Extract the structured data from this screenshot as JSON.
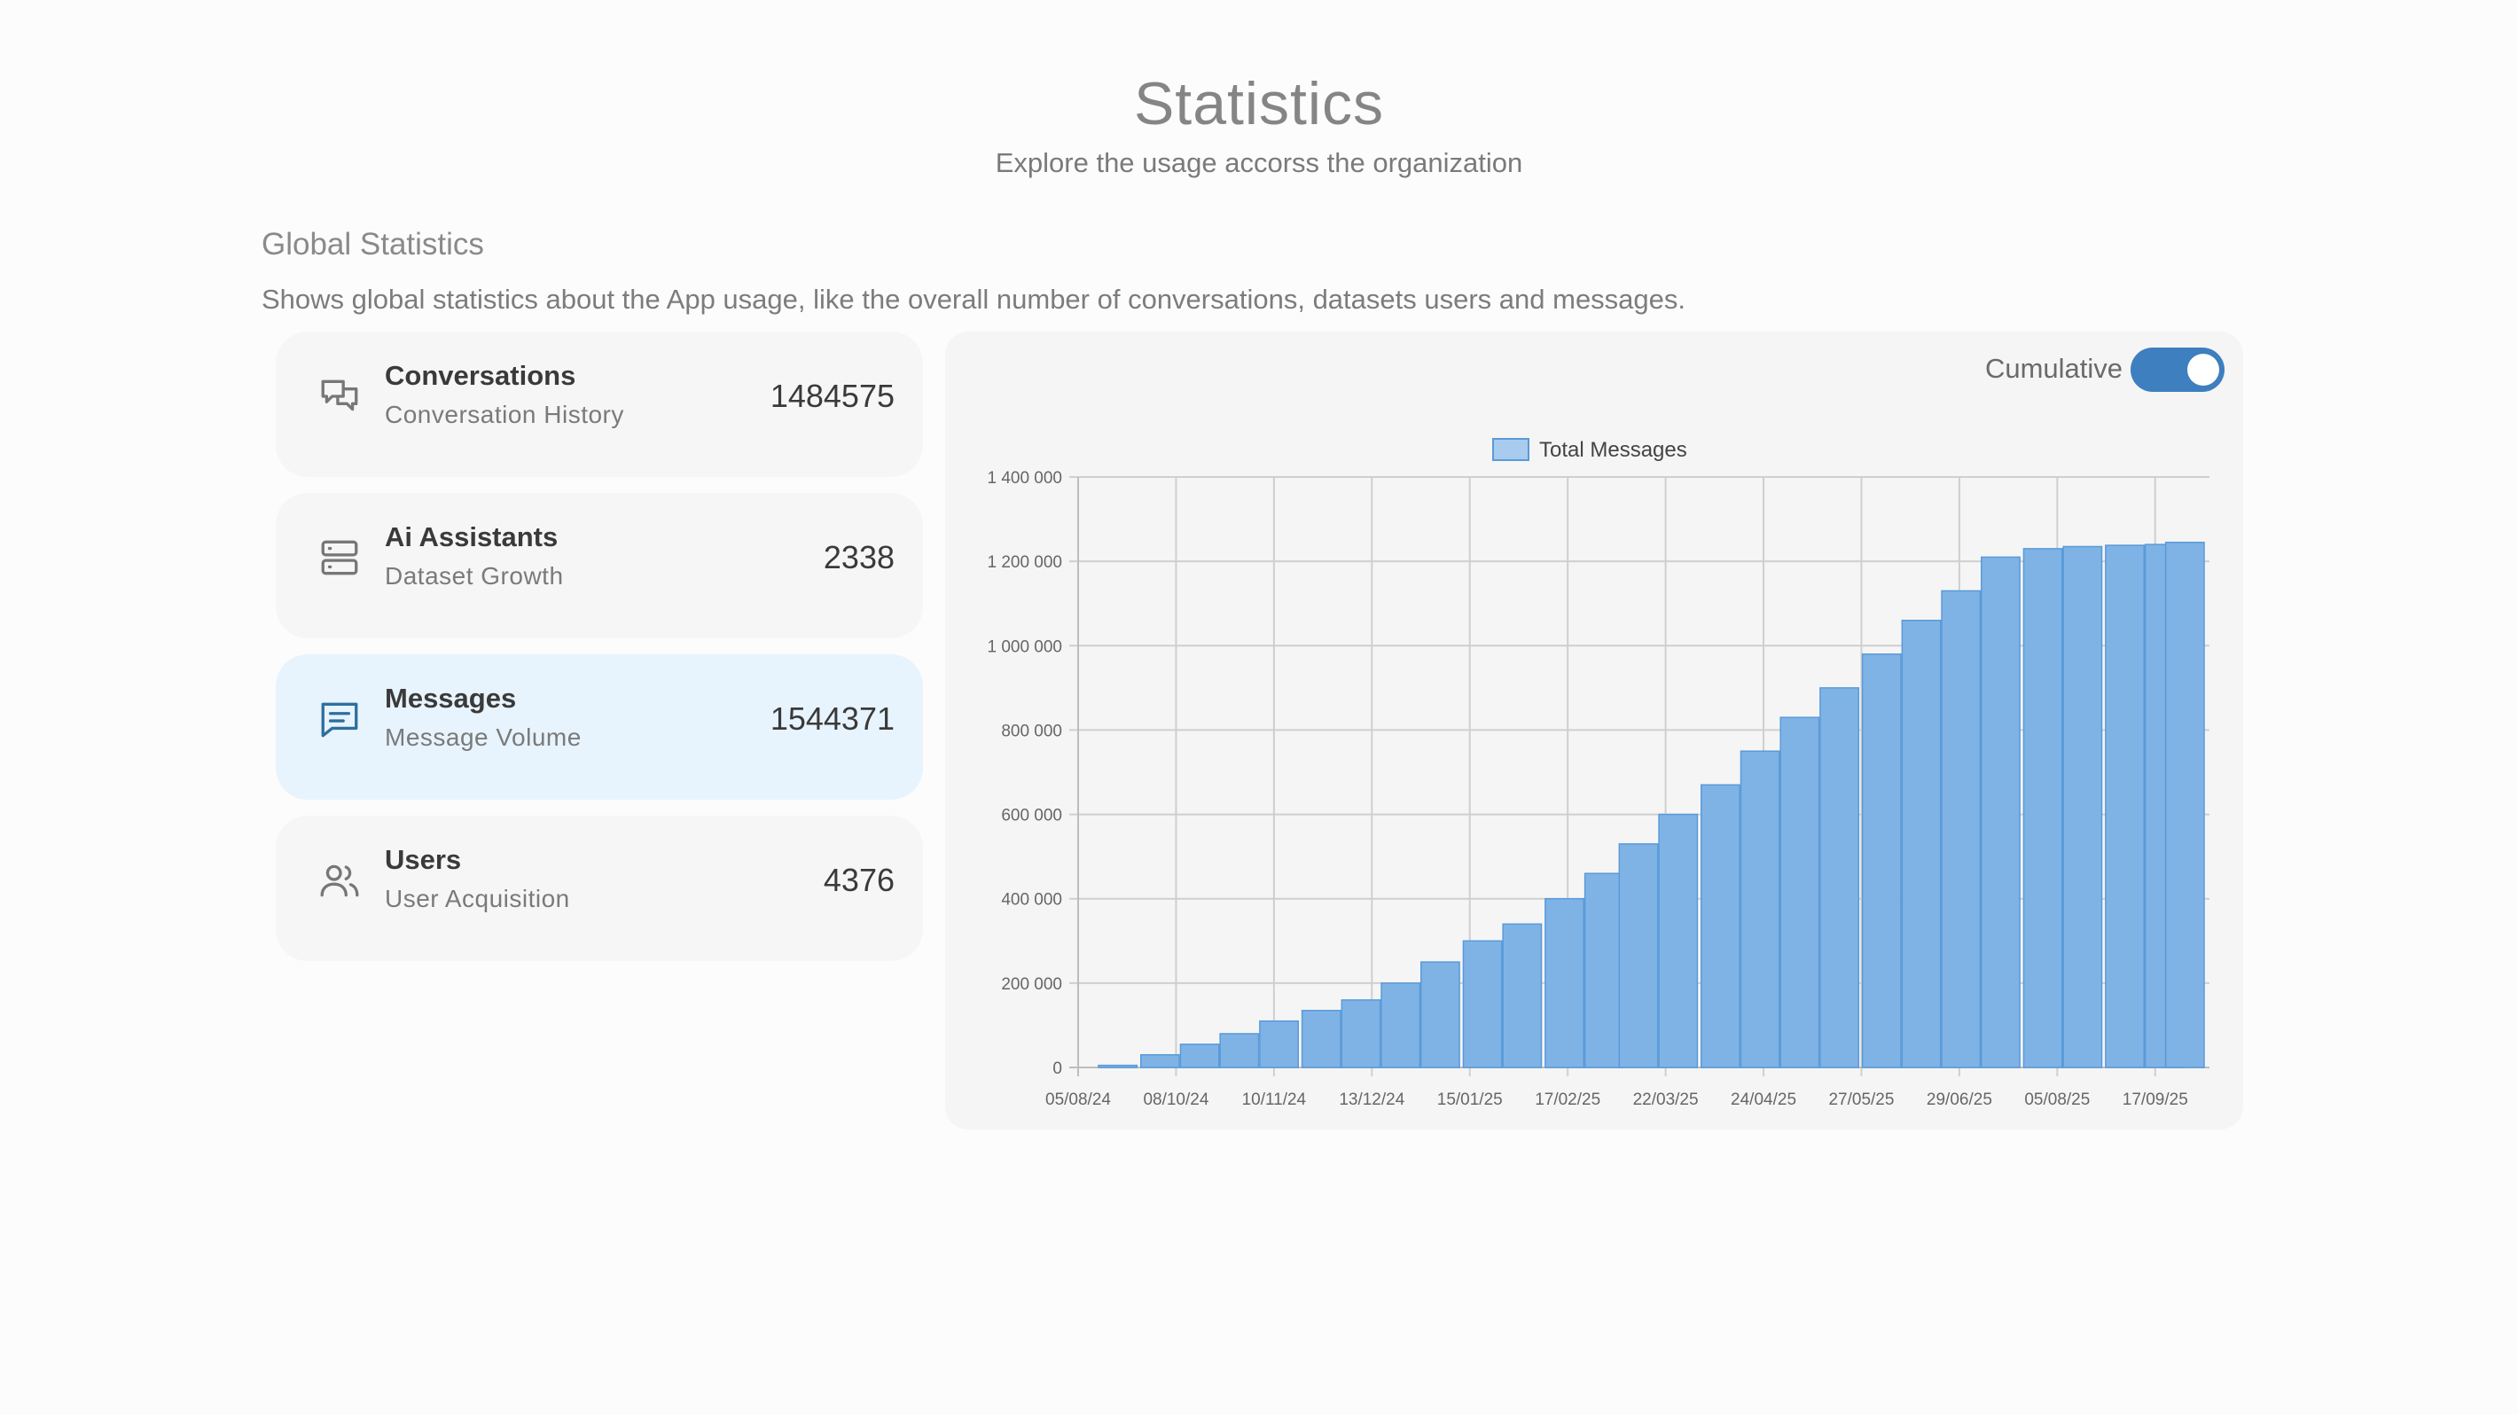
{
  "header": {
    "title": "Statistics",
    "subtitle": "Explore the usage accorss the organization"
  },
  "section": {
    "title": "Global Statistics",
    "description": "Shows global statistics about the App usage, like the overall number of conversations, datasets users and messages."
  },
  "cards": [
    {
      "title": "Conversations",
      "subtitle": "Conversation History",
      "value": "1484575",
      "icon": "chat-bubbles-icon",
      "active": false
    },
    {
      "title": "Ai Assistants",
      "subtitle": "Dataset Growth",
      "value": "2338",
      "icon": "server-icon",
      "active": false
    },
    {
      "title": "Messages",
      "subtitle": "Message Volume",
      "value": "1544371",
      "icon": "message-icon",
      "active": true
    },
    {
      "title": "Users",
      "subtitle": "User Acquisition",
      "value": "4376",
      "icon": "users-icon",
      "active": false
    }
  ],
  "toggle": {
    "label": "Cumulative",
    "on": true
  },
  "colors": {
    "accent": "#3d7fbf",
    "bar_fill": "#7fb3e6",
    "bar_stroke": "#5a9ad8",
    "active_card": "#e8f4fd"
  },
  "chart_data": {
    "type": "bar",
    "legend": [
      "Total Messages"
    ],
    "legend_position": "top-center",
    "grid": true,
    "x_ticks": [
      "05/08/24",
      "08/10/24",
      "10/11/24",
      "13/12/24",
      "15/01/25",
      "17/02/25",
      "22/03/25",
      "24/04/25",
      "27/05/25",
      "29/06/25",
      "05/08/25",
      "17/09/25"
    ],
    "x_range": [
      "05/08/24",
      "05/10/25"
    ],
    "y_ticks": [
      "0",
      "200 000",
      "400 000",
      "600 000",
      "800 000",
      "1 000 000",
      "1 200 000",
      "1 400 000"
    ],
    "ylim": [
      0,
      1400000
    ],
    "series": [
      {
        "name": "Total Messages",
        "x": [
          "05/08/24",
          "20/08/24",
          "05/09/24",
          "20/09/24",
          "05/10/24",
          "20/10/24",
          "05/11/24",
          "20/11/24",
          "05/12/24",
          "20/12/24",
          "05/01/25",
          "20/01/25",
          "05/02/25",
          "20/02/25",
          "05/03/25",
          "20/03/25",
          "05/04/25",
          "20/04/25",
          "05/05/25",
          "20/05/25",
          "05/06/25",
          "20/06/25",
          "05/07/25",
          "20/07/25",
          "05/08/25",
          "20/08/25",
          "05/09/25",
          "20/09/25",
          "05/10/25"
        ],
        "values": [
          0,
          5000,
          30000,
          55000,
          80000,
          110000,
          135000,
          160000,
          200000,
          250000,
          300000,
          340000,
          400000,
          460000,
          530000,
          600000,
          670000,
          750000,
          830000,
          900000,
          980000,
          1060000,
          1130000,
          1210000,
          1230000,
          1235000,
          1238000,
          1240000,
          1245000
        ]
      }
    ]
  }
}
